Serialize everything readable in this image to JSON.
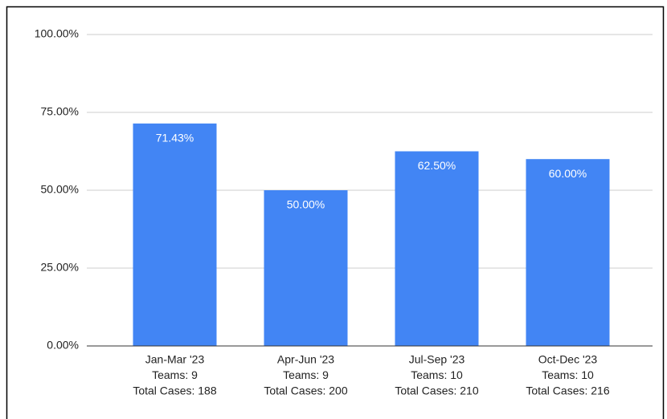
{
  "chart_data": {
    "type": "bar",
    "categories": [
      [
        "Jan-Mar '23",
        "Teams: 9",
        "Total Cases: 188"
      ],
      [
        "Apr-Jun '23",
        "Teams: 9",
        "Total Cases: 200"
      ],
      [
        "Jul-Sep '23",
        "Teams: 10",
        "Total Cases: 210"
      ],
      [
        "Oct-Dec '23",
        "Teams: 10",
        "Total Cases: 216"
      ]
    ],
    "values": [
      71.43,
      50,
      62.5,
      60
    ],
    "value_labels": [
      "71.43%",
      "50.00%",
      "62.50%",
      "60.00%"
    ],
    "color": "#4285f4",
    "ylim": [
      0,
      100
    ],
    "yticks": [
      {
        "value": 0,
        "label": "0.00%"
      },
      {
        "value": 25,
        "label": "25.00%"
      },
      {
        "value": 50,
        "label": "50.00%"
      },
      {
        "value": 75,
        "label": "75.00%"
      },
      {
        "value": 100,
        "label": "100.00%"
      }
    ],
    "grid": true
  }
}
